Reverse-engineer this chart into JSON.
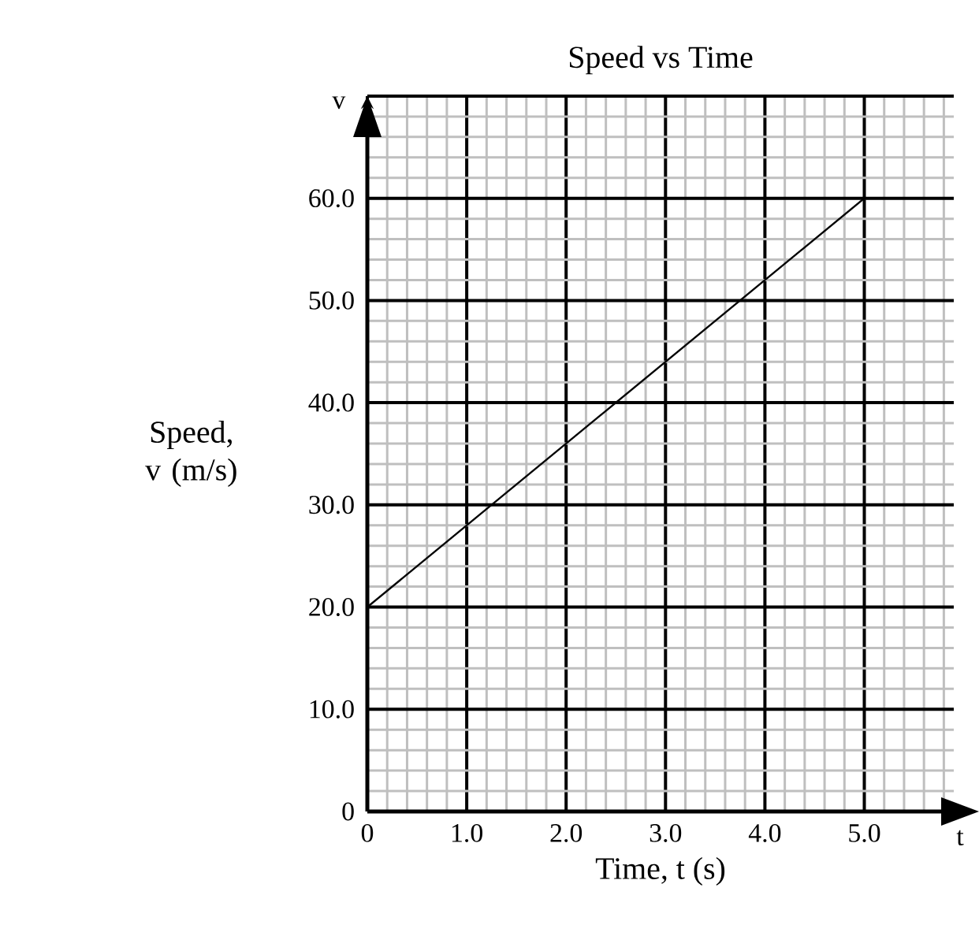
{
  "chart_data": {
    "type": "line",
    "title": "Speed vs Time",
    "xlabel": "Time, t    (s)",
    "ylabel": "Speed, v (m/s)",
    "annotations": [
      "v",
      "t"
    ],
    "x": [
      0,
      5
    ],
    "series": [
      {
        "color": "#000000",
        "values": [
          20,
          60
        ]
      }
    ],
    "xlim": [
      0,
      5.9
    ],
    "ylim": [
      0,
      70
    ],
    "xticks": [
      0,
      {
        "value": 1,
        "label": "1.0"
      },
      {
        "value": 2,
        "label": "2.0"
      },
      {
        "value": 3,
        "label": "3.0"
      },
      {
        "value": 4,
        "label": "4.0"
      },
      {
        "value": 5,
        "label": "5.0"
      }
    ],
    "yticks": [
      0,
      {
        "value": 10,
        "label": "10.0"
      },
      {
        "value": 20,
        "label": "20.0"
      },
      {
        "value": 30,
        "label": "30.0"
      },
      {
        "value": 40,
        "label": "40.0"
      },
      {
        "value": 50,
        "label": "50.0"
      },
      {
        "value": 60,
        "label": "60.0"
      },
      {
        "value": 70,
        "label": null
      }
    ],
    "grid": true,
    "marker": "none",
    "line_style": "solid"
  }
}
